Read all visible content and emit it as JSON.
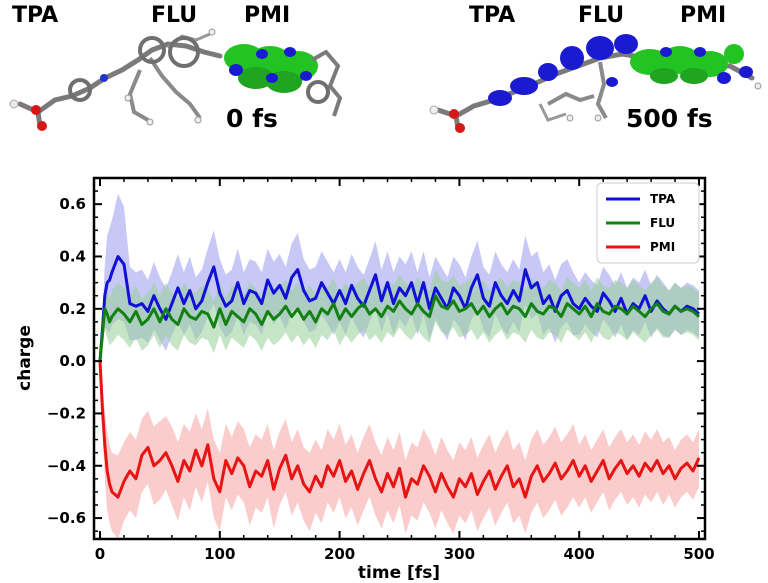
{
  "snapshots": [
    {
      "fragment_labels": [
        "TPA",
        "FLU",
        "PMI"
      ],
      "time_label": "0 fs",
      "density": "PMI"
    },
    {
      "fragment_labels": [
        "TPA",
        "FLU",
        "PMI"
      ],
      "time_label": "500 fs",
      "density": "spread"
    }
  ],
  "colors": {
    "TPA": "#1010d8",
    "FLU": "#138013",
    "PMI": "#e81414",
    "TPA_band": "#9b9bf0",
    "FLU_band": "#98cf98",
    "PMI_band": "#f6a3a3",
    "density_green": "#22c322",
    "density_blue": "#1a1ad0"
  },
  "chart_data": {
    "type": "line",
    "title": "",
    "xlabel": "time [fs]",
    "ylabel": "charge",
    "xlim": [
      -5,
      505
    ],
    "ylim": [
      -0.68,
      0.7
    ],
    "xticks": [
      0,
      100,
      200,
      300,
      400,
      500
    ],
    "yticks": [
      -0.6,
      -0.4,
      -0.2,
      0.0,
      0.2,
      0.4,
      0.6
    ],
    "ytick_labels": [
      "−0.6",
      "−0.4",
      "−0.2",
      "0.0",
      "0.2",
      "0.4",
      "0.6"
    ],
    "legend_position": "top-right",
    "grid": false,
    "x": [
      0,
      2,
      4,
      6,
      8,
      10,
      15,
      20,
      25,
      30,
      35,
      40,
      45,
      50,
      55,
      60,
      65,
      70,
      75,
      80,
      85,
      90,
      95,
      100,
      105,
      110,
      115,
      120,
      125,
      130,
      135,
      140,
      145,
      150,
      155,
      160,
      165,
      170,
      175,
      180,
      185,
      190,
      195,
      200,
      205,
      210,
      215,
      220,
      225,
      230,
      235,
      240,
      245,
      250,
      255,
      260,
      265,
      270,
      275,
      280,
      285,
      290,
      295,
      300,
      305,
      310,
      315,
      320,
      325,
      330,
      335,
      340,
      345,
      350,
      355,
      360,
      365,
      370,
      375,
      380,
      385,
      390,
      395,
      400,
      405,
      410,
      415,
      420,
      425,
      430,
      435,
      440,
      445,
      450,
      455,
      460,
      465,
      470,
      475,
      480,
      485,
      490,
      495,
      500
    ],
    "series": [
      {
        "name": "TPA",
        "values": [
          0.0,
          0.12,
          0.25,
          0.3,
          0.31,
          0.34,
          0.4,
          0.37,
          0.22,
          0.21,
          0.22,
          0.19,
          0.25,
          0.2,
          0.16,
          0.22,
          0.28,
          0.22,
          0.27,
          0.2,
          0.23,
          0.3,
          0.36,
          0.26,
          0.21,
          0.23,
          0.3,
          0.22,
          0.27,
          0.26,
          0.22,
          0.31,
          0.26,
          0.29,
          0.24,
          0.32,
          0.35,
          0.27,
          0.23,
          0.24,
          0.3,
          0.26,
          0.22,
          0.27,
          0.22,
          0.29,
          0.24,
          0.21,
          0.27,
          0.33,
          0.23,
          0.3,
          0.22,
          0.28,
          0.25,
          0.3,
          0.22,
          0.3,
          0.2,
          0.28,
          0.24,
          0.2,
          0.28,
          0.25,
          0.2,
          0.28,
          0.33,
          0.24,
          0.21,
          0.3,
          0.25,
          0.22,
          0.27,
          0.23,
          0.35,
          0.28,
          0.3,
          0.22,
          0.25,
          0.19,
          0.25,
          0.27,
          0.22,
          0.2,
          0.24,
          0.21,
          0.19,
          0.26,
          0.23,
          0.19,
          0.24,
          0.18,
          0.22,
          0.2,
          0.25,
          0.19,
          0.23,
          0.2,
          0.18,
          0.21,
          0.19,
          0.21,
          0.2,
          0.18
        ],
        "band": [
          0.0,
          0.05,
          0.12,
          0.18,
          0.2,
          0.2,
          0.24,
          0.22,
          0.14,
          0.13,
          0.13,
          0.12,
          0.13,
          0.12,
          0.12,
          0.12,
          0.13,
          0.12,
          0.13,
          0.12,
          0.12,
          0.13,
          0.14,
          0.13,
          0.12,
          0.12,
          0.13,
          0.12,
          0.12,
          0.12,
          0.12,
          0.12,
          0.12,
          0.12,
          0.12,
          0.13,
          0.14,
          0.12,
          0.12,
          0.12,
          0.12,
          0.12,
          0.12,
          0.12,
          0.12,
          0.12,
          0.12,
          0.12,
          0.12,
          0.13,
          0.12,
          0.12,
          0.12,
          0.12,
          0.12,
          0.12,
          0.12,
          0.12,
          0.12,
          0.12,
          0.12,
          0.12,
          0.12,
          0.12,
          0.12,
          0.12,
          0.13,
          0.12,
          0.12,
          0.12,
          0.12,
          0.12,
          0.12,
          0.12,
          0.13,
          0.12,
          0.12,
          0.12,
          0.12,
          0.12,
          0.12,
          0.12,
          0.12,
          0.1,
          0.1,
          0.1,
          0.1,
          0.1,
          0.1,
          0.1,
          0.1,
          0.1,
          0.1,
          0.1,
          0.1,
          0.1,
          0.1,
          0.1,
          0.09,
          0.09,
          0.09,
          0.09,
          0.09,
          0.09
        ]
      },
      {
        "name": "FLU",
        "values": [
          0.0,
          0.1,
          0.2,
          0.18,
          0.15,
          0.17,
          0.2,
          0.18,
          0.15,
          0.19,
          0.14,
          0.16,
          0.2,
          0.15,
          0.2,
          0.16,
          0.14,
          0.2,
          0.17,
          0.16,
          0.19,
          0.18,
          0.13,
          0.2,
          0.14,
          0.19,
          0.17,
          0.15,
          0.2,
          0.18,
          0.14,
          0.19,
          0.16,
          0.18,
          0.21,
          0.17,
          0.2,
          0.16,
          0.19,
          0.15,
          0.2,
          0.18,
          0.22,
          0.16,
          0.2,
          0.17,
          0.2,
          0.22,
          0.18,
          0.2,
          0.17,
          0.21,
          0.19,
          0.23,
          0.2,
          0.18,
          0.22,
          0.19,
          0.17,
          0.25,
          0.21,
          0.2,
          0.23,
          0.19,
          0.2,
          0.22,
          0.18,
          0.21,
          0.17,
          0.2,
          0.22,
          0.18,
          0.21,
          0.2,
          0.17,
          0.22,
          0.19,
          0.18,
          0.21,
          0.2,
          0.17,
          0.22,
          0.2,
          0.18,
          0.21,
          0.17,
          0.22,
          0.19,
          0.18,
          0.21,
          0.2,
          0.18,
          0.21,
          0.19,
          0.17,
          0.2,
          0.22,
          0.19,
          0.18,
          0.21,
          0.19,
          0.2,
          0.19,
          0.17
        ],
        "band": [
          0.0,
          0.05,
          0.08,
          0.09,
          0.09,
          0.1,
          0.1,
          0.1,
          0.1,
          0.1,
          0.1,
          0.1,
          0.1,
          0.1,
          0.1,
          0.1,
          0.1,
          0.1,
          0.1,
          0.1,
          0.1,
          0.1,
          0.1,
          0.1,
          0.1,
          0.1,
          0.1,
          0.1,
          0.1,
          0.1,
          0.1,
          0.1,
          0.1,
          0.1,
          0.1,
          0.1,
          0.1,
          0.1,
          0.1,
          0.1,
          0.1,
          0.1,
          0.1,
          0.1,
          0.1,
          0.1,
          0.1,
          0.1,
          0.1,
          0.1,
          0.1,
          0.1,
          0.1,
          0.1,
          0.1,
          0.1,
          0.1,
          0.1,
          0.1,
          0.1,
          0.1,
          0.1,
          0.1,
          0.1,
          0.1,
          0.1,
          0.1,
          0.1,
          0.1,
          0.1,
          0.1,
          0.1,
          0.1,
          0.1,
          0.1,
          0.1,
          0.1,
          0.1,
          0.1,
          0.1,
          0.1,
          0.1,
          0.1,
          0.1,
          0.1,
          0.1,
          0.1,
          0.1,
          0.1,
          0.1,
          0.1,
          0.1,
          0.1,
          0.1,
          0.1,
          0.1,
          0.1,
          0.1,
          0.09,
          0.09,
          0.09,
          0.09,
          0.09,
          0.09
        ]
      },
      {
        "name": "PMI",
        "values": [
          0.0,
          -0.18,
          -0.32,
          -0.42,
          -0.47,
          -0.5,
          -0.52,
          -0.46,
          -0.42,
          -0.45,
          -0.36,
          -0.33,
          -0.4,
          -0.38,
          -0.35,
          -0.4,
          -0.46,
          -0.38,
          -0.42,
          -0.34,
          -0.4,
          -0.32,
          -0.45,
          -0.5,
          -0.38,
          -0.43,
          -0.37,
          -0.4,
          -0.48,
          -0.42,
          -0.44,
          -0.38,
          -0.49,
          -0.41,
          -0.36,
          -0.45,
          -0.4,
          -0.47,
          -0.5,
          -0.44,
          -0.48,
          -0.4,
          -0.44,
          -0.38,
          -0.46,
          -0.42,
          -0.49,
          -0.43,
          -0.38,
          -0.45,
          -0.5,
          -0.43,
          -0.48,
          -0.41,
          -0.52,
          -0.45,
          -0.47,
          -0.4,
          -0.44,
          -0.5,
          -0.43,
          -0.48,
          -0.52,
          -0.45,
          -0.48,
          -0.43,
          -0.51,
          -0.46,
          -0.42,
          -0.49,
          -0.44,
          -0.4,
          -0.48,
          -0.45,
          -0.52,
          -0.44,
          -0.4,
          -0.46,
          -0.43,
          -0.39,
          -0.45,
          -0.42,
          -0.38,
          -0.44,
          -0.4,
          -0.46,
          -0.42,
          -0.38,
          -0.45,
          -0.41,
          -0.38,
          -0.43,
          -0.4,
          -0.44,
          -0.39,
          -0.42,
          -0.38,
          -0.43,
          -0.4,
          -0.45,
          -0.41,
          -0.39,
          -0.42,
          -0.37
        ],
        "band": [
          0.0,
          0.08,
          0.13,
          0.15,
          0.15,
          0.15,
          0.16,
          0.15,
          0.15,
          0.15,
          0.14,
          0.14,
          0.15,
          0.15,
          0.14,
          0.15,
          0.15,
          0.14,
          0.15,
          0.14,
          0.14,
          0.14,
          0.15,
          0.15,
          0.14,
          0.14,
          0.14,
          0.14,
          0.15,
          0.14,
          0.14,
          0.14,
          0.15,
          0.14,
          0.14,
          0.14,
          0.14,
          0.14,
          0.15,
          0.14,
          0.14,
          0.14,
          0.14,
          0.14,
          0.14,
          0.14,
          0.14,
          0.14,
          0.14,
          0.14,
          0.14,
          0.14,
          0.14,
          0.14,
          0.14,
          0.14,
          0.14,
          0.14,
          0.14,
          0.14,
          0.14,
          0.14,
          0.14,
          0.14,
          0.14,
          0.14,
          0.14,
          0.14,
          0.14,
          0.14,
          0.14,
          0.14,
          0.14,
          0.14,
          0.14,
          0.14,
          0.14,
          0.14,
          0.14,
          0.14,
          0.14,
          0.14,
          0.14,
          0.12,
          0.12,
          0.12,
          0.12,
          0.12,
          0.12,
          0.12,
          0.12,
          0.12,
          0.12,
          0.12,
          0.12,
          0.12,
          0.12,
          0.12,
          0.11,
          0.11,
          0.11,
          0.11,
          0.11,
          0.11
        ]
      }
    ]
  }
}
